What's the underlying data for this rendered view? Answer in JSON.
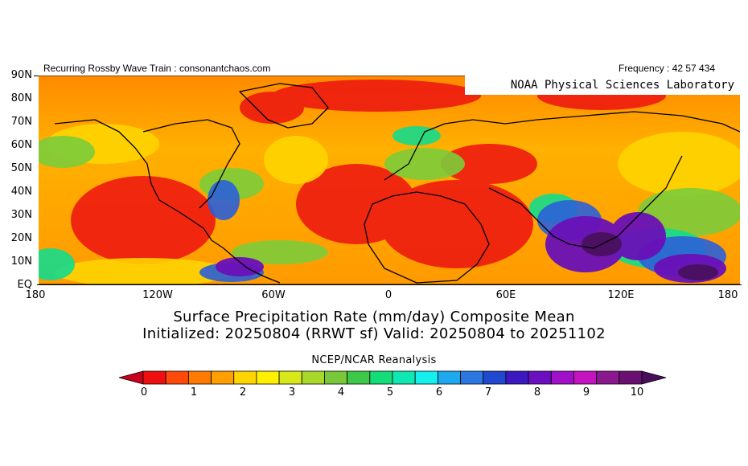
{
  "header": {
    "left_text": "Recurring Rossby Wave Train : consonantchaos.com",
    "right_text": "Frequency : 42 57 434",
    "lab_label": "NOAA Physical Sciences Laboratory"
  },
  "axes": {
    "lat_labels": [
      "90N",
      "80N",
      "70N",
      "60N",
      "50N",
      "40N",
      "30N",
      "20N",
      "10N",
      "EQ"
    ],
    "lon_labels": [
      "180",
      "120W",
      "60W",
      "0",
      "60E",
      "120E",
      "180"
    ]
  },
  "title": {
    "line1": "Surface Precipitation Rate (mm/day) Composite Mean",
    "line2": "Initialized: 20250804 (RRWT sf) Valid: 20250804 to 20251102"
  },
  "colorbar": {
    "source_label": "NCEP/NCAR Reanalysis",
    "tick_labels": [
      "0",
      "1",
      "2",
      "3",
      "4",
      "5",
      "6",
      "7",
      "8",
      "9",
      "10"
    ],
    "colors": [
      "#c8001e",
      "#ee1010",
      "#ff4a0a",
      "#ff7a00",
      "#ffa000",
      "#ffd400",
      "#fff000",
      "#d8e81a",
      "#a8d82a",
      "#78c83a",
      "#3ec84a",
      "#14dc78",
      "#10e8b4",
      "#14f0ee",
      "#1ea8ee",
      "#2c78e0",
      "#2048d0",
      "#3c18c0",
      "#6a10c0",
      "#a010c8",
      "#c414c0",
      "#8c1890",
      "#6a1070",
      "#48105a"
    ]
  }
}
